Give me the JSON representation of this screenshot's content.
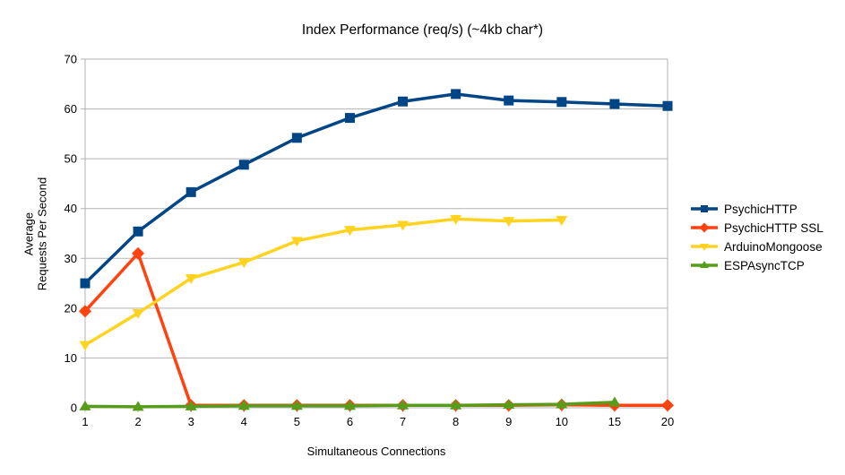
{
  "chart_data": {
    "type": "line",
    "title": "Index Performance (req/s) (~4kb char*)",
    "xlabel": "Simultaneous Connections",
    "ylabel_lines": [
      "Average",
      "Requests Per Second"
    ],
    "categories": [
      "1",
      "2",
      "3",
      "4",
      "5",
      "6",
      "7",
      "8",
      "9",
      "10",
      "15",
      "20"
    ],
    "ylim": [
      0,
      70
    ],
    "ytick_step": 10,
    "grid": "horizontal",
    "legend_position": "right",
    "colors": {
      "background": "#ffffff",
      "gridline": "#b3b3b3",
      "axis": "#b3b3b3",
      "text": "#000000"
    },
    "series": [
      {
        "name": "PsychicHTTP",
        "color": "#004586",
        "marker": "square",
        "values": [
          25.0,
          35.4,
          43.3,
          48.8,
          54.2,
          58.2,
          61.5,
          63.0,
          61.7,
          61.4,
          61.0,
          60.6
        ]
      },
      {
        "name": "PsychicHTTP SSL",
        "color": "#FF420E",
        "marker": "diamond",
        "values": [
          19.4,
          31.0,
          0.5,
          0.5,
          0.5,
          0.5,
          0.5,
          0.5,
          0.5,
          0.6,
          0.5,
          0.5
        ]
      },
      {
        "name": "ArduinoMongoose",
        "color": "#FFD320",
        "marker": "triangle-down",
        "values": [
          12.6,
          19.0,
          26.0,
          29.2,
          33.5,
          35.7,
          36.7,
          37.9,
          37.5,
          37.7,
          null,
          null
        ]
      },
      {
        "name": "ESPAsyncTCP",
        "color": "#579D1C",
        "marker": "triangle-up",
        "values": [
          0.3,
          0.2,
          0.3,
          0.4,
          0.4,
          0.4,
          0.5,
          0.5,
          0.6,
          0.7,
          1.1,
          null
        ]
      }
    ]
  }
}
